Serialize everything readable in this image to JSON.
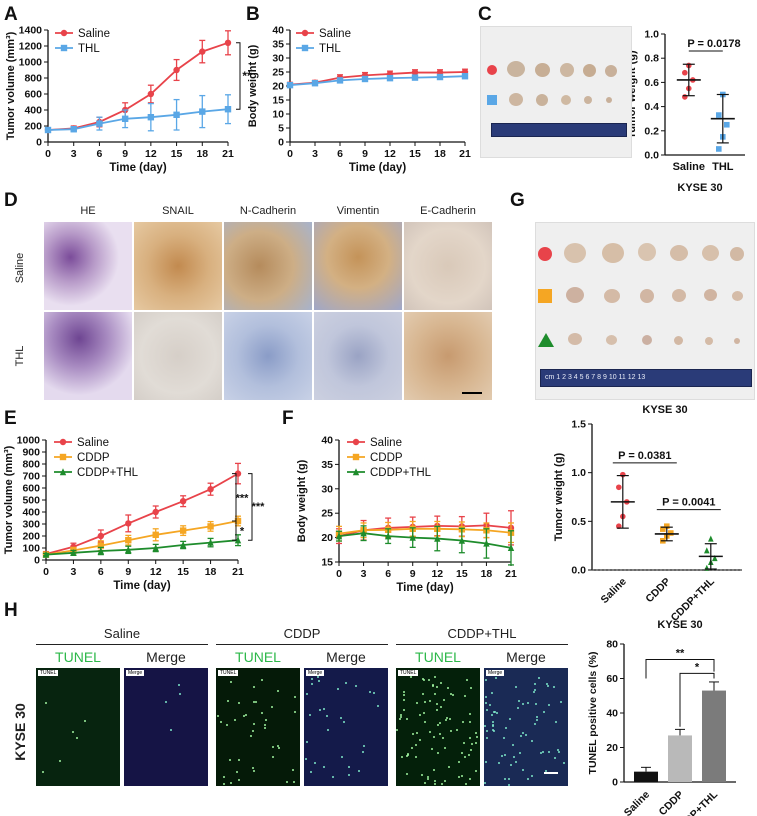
{
  "panel_labels": {
    "A": "A",
    "B": "B",
    "C": "C",
    "D": "D",
    "E": "E",
    "F": "F",
    "G": "G",
    "H": "H"
  },
  "stain_headers": [
    "HE",
    "SNAIL",
    "N-Cadherin",
    "Vimentin",
    "E-Cadherin"
  ],
  "ihc_rows": [
    "Saline",
    "THL"
  ],
  "tunel_groups": [
    "Saline",
    "CDDP",
    "CDDP+THL"
  ],
  "tunel_cols": [
    "TUNEL",
    "Merge",
    "TUNEL",
    "Merge",
    "TUNEL",
    "Merge"
  ],
  "tunel_tags": [
    "TUNEL",
    "Merge",
    "TUNEL",
    "Merge",
    "TUNEL",
    "Merge"
  ],
  "kyse_side": "KYSE 30",
  "ruler_text": "cm 1 2 3 4 5 6 7 8 9 10 11 12 13",
  "colors": {
    "red": "#e8434a",
    "blue": "#5aa7e6",
    "orange": "#f5a623",
    "green": "#1e8c2c"
  },
  "chart_data": [
    {
      "id": "A",
      "type": "line",
      "xlabel": "Time (day)",
      "ylabel": "Tumor volume (mm³)",
      "x": [
        0,
        3,
        6,
        9,
        12,
        15,
        18,
        21
      ],
      "ylim": [
        0,
        1400
      ],
      "yticks": [
        0,
        200,
        400,
        600,
        800,
        1000,
        1200,
        1400
      ],
      "series": [
        {
          "name": "Saline",
          "color": "red",
          "values": [
            150,
            170,
            250,
            400,
            600,
            900,
            1130,
            1240
          ],
          "err": [
            20,
            30,
            60,
            90,
            110,
            130,
            140,
            150
          ]
        },
        {
          "name": "THL",
          "color": "blue",
          "values": [
            150,
            160,
            230,
            290,
            310,
            340,
            380,
            410
          ],
          "err": [
            20,
            30,
            80,
            110,
            170,
            190,
            200,
            180
          ]
        }
      ],
      "sig": [
        {
          "text": "**"
        }
      ]
    },
    {
      "id": "B",
      "type": "line",
      "xlabel": "Time (day)",
      "ylabel": "Body weight (g)",
      "x": [
        0,
        3,
        6,
        9,
        12,
        15,
        18,
        21
      ],
      "ylim": [
        0,
        40
      ],
      "yticks": [
        0,
        5,
        10,
        15,
        20,
        25,
        30,
        35,
        40
      ],
      "series": [
        {
          "name": "Saline",
          "color": "red",
          "values": [
            20.5,
            21.2,
            23,
            23.8,
            24.3,
            24.8,
            24.8,
            25
          ],
          "err": [
            0.8,
            0.8,
            1,
            1,
            1,
            1,
            1,
            1
          ]
        },
        {
          "name": "THL",
          "color": "blue",
          "values": [
            20.3,
            21,
            22,
            22.5,
            22.8,
            23,
            23.2,
            23.5
          ],
          "err": [
            0.6,
            0.8,
            0.8,
            0.8,
            0.8,
            0.8,
            0.8,
            0.8
          ]
        }
      ]
    },
    {
      "id": "C",
      "type": "scatter",
      "categories": [
        "Saline",
        "THL"
      ],
      "ylabel": "Tumor weight (g)",
      "title": "KYSE 30",
      "ylim": [
        0,
        1.0
      ],
      "yticks": [
        "0.0",
        "0.2",
        "0.4",
        "0.6",
        "0.8",
        "1.0"
      ],
      "groups": [
        {
          "color": "red",
          "shape": "circle",
          "points": [
            0.48,
            0.55,
            0.62,
            0.68,
            0.74
          ],
          "mean": 0.62,
          "sd": 0.13
        },
        {
          "color": "blue",
          "shape": "square",
          "points": [
            0.05,
            0.15,
            0.25,
            0.33,
            0.5
          ],
          "mean": 0.3,
          "sd": 0.2
        }
      ],
      "sig": [
        {
          "text": "P = 0.0178"
        }
      ]
    },
    {
      "id": "E",
      "type": "line",
      "xlabel": "Time (day)",
      "ylabel": "Tumor volume (mm³)",
      "x": [
        0,
        3,
        6,
        9,
        12,
        15,
        18,
        21
      ],
      "ylim": [
        0,
        1000
      ],
      "yticks": [
        0,
        100,
        200,
        300,
        400,
        500,
        600,
        700,
        800,
        900,
        1000
      ],
      "series": [
        {
          "name": "Saline",
          "color": "red",
          "values": [
            50,
            110,
            200,
            305,
            400,
            490,
            590,
            720
          ],
          "err": [
            20,
            30,
            50,
            70,
            50,
            45,
            50,
            85
          ]
        },
        {
          "name": "CDDP",
          "color": "orange",
          "values": [
            45,
            80,
            120,
            165,
            210,
            245,
            280,
            325
          ],
          "err": [
            15,
            25,
            40,
            40,
            50,
            40,
            40,
            40
          ]
        },
        {
          "name": "CDDP+THL",
          "color": "green",
          "values": [
            45,
            60,
            75,
            85,
            100,
            125,
            145,
            165
          ],
          "err": [
            10,
            20,
            30,
            30,
            30,
            30,
            35,
            45
          ]
        }
      ],
      "sig": [
        {
          "text": "***"
        },
        {
          "text": "***"
        },
        {
          "text": "*"
        }
      ]
    },
    {
      "id": "F",
      "type": "line",
      "xlabel": "Time (day)",
      "ylabel": "Body weight (g)",
      "x": [
        0,
        3,
        6,
        9,
        12,
        15,
        18,
        21
      ],
      "ylim": [
        15,
        40
      ],
      "yticks": [
        15,
        20,
        25,
        30,
        35,
        40
      ],
      "series": [
        {
          "name": "Saline",
          "color": "red",
          "values": [
            20.3,
            21.5,
            22,
            22.2,
            22.4,
            22.3,
            22.5,
            22
          ],
          "err": [
            1.5,
            2,
            2,
            2,
            2,
            2,
            2.5,
            3.5
          ]
        },
        {
          "name": "CDDP",
          "color": "orange",
          "values": [
            20.8,
            21.5,
            21.6,
            21.8,
            21.8,
            21.7,
            21.5,
            21
          ],
          "err": [
            1.5,
            1.5,
            1.5,
            1.5,
            1.5,
            1.5,
            1.5,
            2
          ]
        },
        {
          "name": "CDDP+THL",
          "color": "green",
          "values": [
            20.3,
            20.9,
            20.3,
            20,
            19.8,
            19.4,
            18.8,
            17.9
          ],
          "err": [
            1,
            1.5,
            1.5,
            2,
            2.5,
            2.5,
            3,
            3.5
          ]
        }
      ]
    },
    {
      "id": "G",
      "type": "scatter",
      "categories": [
        "Saline",
        "CDDP",
        "CDDP+THL"
      ],
      "ylabel": "Tumor weight (g)",
      "title": "KYSE 30",
      "ylim": [
        0,
        1.5
      ],
      "yticks": [
        "0.0",
        "0.5",
        "1.0",
        "1.5"
      ],
      "groups": [
        {
          "color": "red",
          "shape": "circle",
          "points": [
            0.45,
            0.55,
            0.7,
            0.85,
            0.98
          ],
          "mean": 0.7,
          "sd": 0.27
        },
        {
          "color": "orange",
          "shape": "square",
          "points": [
            0.3,
            0.35,
            0.38,
            0.42,
            0.45
          ],
          "mean": 0.37,
          "sd": 0.07
        },
        {
          "color": "green",
          "shape": "triangle",
          "points": [
            0.02,
            0.08,
            0.12,
            0.2,
            0.32
          ],
          "mean": 0.14,
          "sd": 0.13
        }
      ],
      "sig": [
        {
          "text": "P = 0.0381"
        },
        {
          "text": "P = 0.0041"
        }
      ]
    },
    {
      "id": "H",
      "type": "bar",
      "categories": [
        "Saline",
        "CDDP",
        "CDDP+THL"
      ],
      "ylabel": "TUNEL positive cells (%)",
      "title": "KYSE 30",
      "ylim": [
        0,
        80
      ],
      "yticks": [
        0,
        20,
        40,
        60,
        80
      ],
      "values": [
        6,
        27,
        53
      ],
      "err": [
        2.5,
        3.5,
        5
      ],
      "bar_colors": [
        "#111111",
        "#b9b9b9",
        "#7b7b7b"
      ],
      "sig": [
        {
          "text": "**"
        },
        {
          "text": "*"
        }
      ]
    }
  ]
}
